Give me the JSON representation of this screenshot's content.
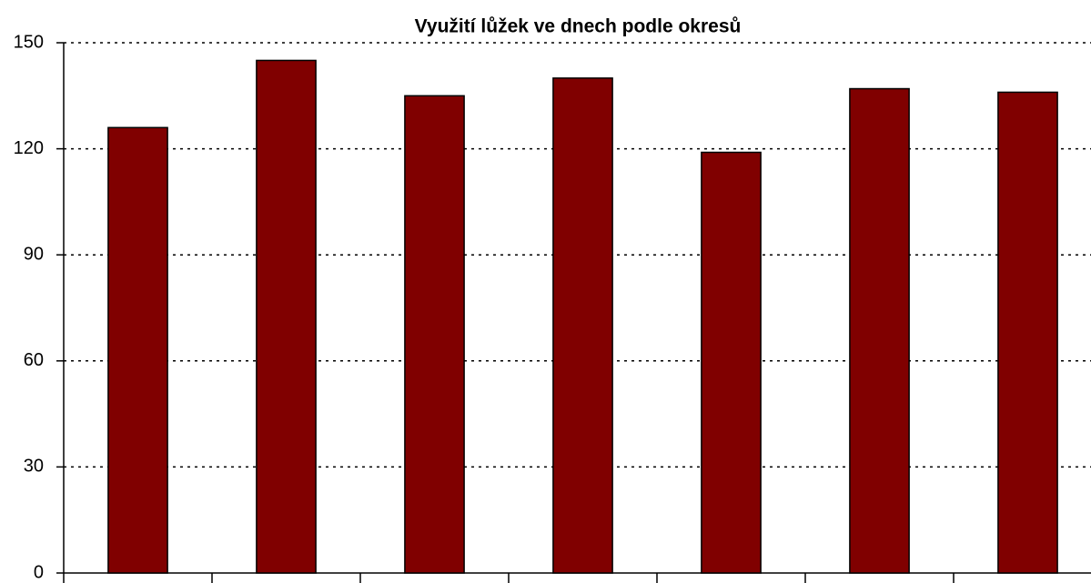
{
  "chart_data": {
    "type": "bar",
    "title": "Využití lůžek ve dnech podle okresů",
    "categories": [
      null,
      null,
      null,
      null,
      null,
      null,
      null
    ],
    "values": [
      126,
      145,
      135,
      140,
      119,
      137,
      136
    ],
    "color": "#800000",
    "ylim": [
      0,
      150
    ],
    "yticks": [
      0,
      30,
      60,
      90,
      120,
      150
    ],
    "grid": true
  }
}
